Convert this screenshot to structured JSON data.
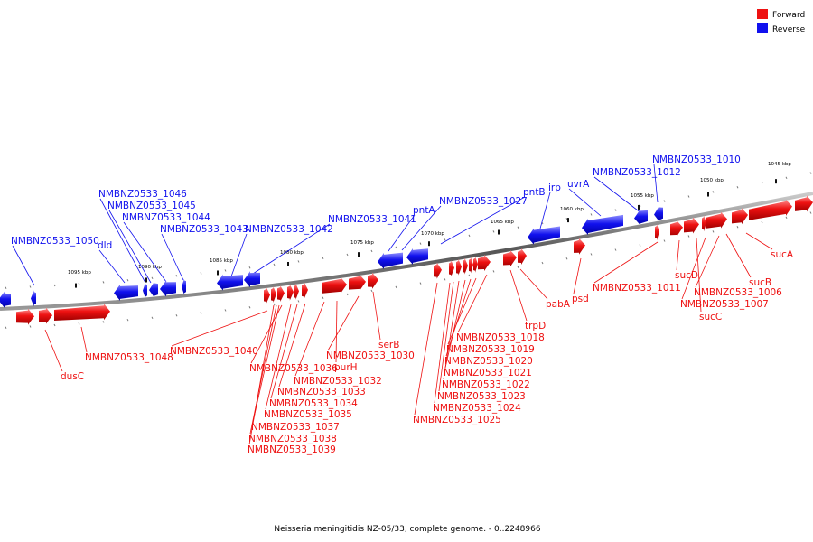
{
  "colors": {
    "forward": "#ee1111",
    "reverse": "#1111ee",
    "backbone": "#777777"
  },
  "legend": [
    {
      "label": "Forward",
      "strand": "forward"
    },
    {
      "label": "Reverse",
      "strand": "reverse"
    }
  ],
  "caption": "Neisseria meningitidis NZ-05/33, complete genome. - 0..2248966",
  "scale_labels": [
    "1045 kbp",
    "1050 kbp",
    "1055 kbp",
    "1060 kbp",
    "1065 kbp",
    "1070 kbp",
    "1075 kbp",
    "1080 kbp",
    "1085 kbp",
    "1090 kbp",
    "1095 kbp"
  ],
  "genes_reverse": [
    "NMBNZ0533_1010",
    "NMBNZ0533_1012",
    "uvrA",
    "irp",
    "pntB",
    "NMBNZ0533_1027",
    "pntA",
    "NMBNZ0533_1041",
    "NMBNZ0533_1042",
    "NMBNZ0533_1043",
    "NMBNZ0533_1044",
    "NMBNZ0533_1045",
    "NMBNZ0533_1046",
    "dld",
    "NMBNZ0533_1050"
  ],
  "genes_forward": [
    "sucA",
    "sucB",
    "NMBNZ0533_1006",
    "NMBNZ0533_1007",
    "sucC",
    "sucD",
    "NMBNZ0533_1011",
    "psd",
    "pabA",
    "trpD",
    "NMBNZ0533_1018",
    "NMBNZ0533_1019",
    "NMBNZ0533_1020",
    "NMBNZ0533_1021",
    "NMBNZ0533_1022",
    "NMBNZ0533_1023",
    "NMBNZ0533_1024",
    "NMBNZ0533_1025",
    "serB",
    "NMBNZ0533_1030",
    "purH",
    "NMBNZ0533_1032",
    "NMBNZ0533_1033",
    "NMBNZ0533_1034",
    "NMBNZ0533_1035",
    "NMBNZ0533_1036",
    "NMBNZ0533_1037",
    "NMBNZ0533_1038",
    "NMBNZ0533_1039",
    "NMBNZ0533_1040",
    "NMBNZ0533_1048",
    "dusC"
  ]
}
